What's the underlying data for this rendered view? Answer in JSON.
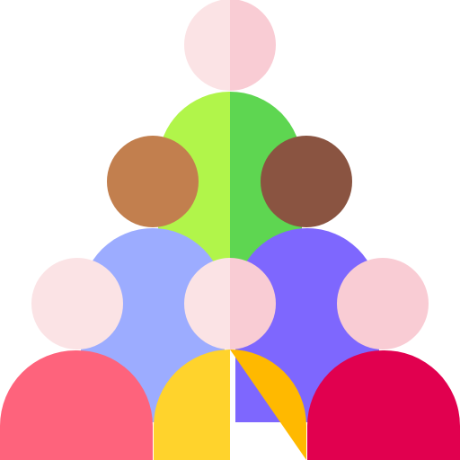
{
  "illustration": {
    "icon": "group-of-people-icon",
    "people": [
      {
        "id": "top",
        "icon": "person-icon",
        "head_left": "#fbe3e5",
        "head_right": "#f9ccd4",
        "body_left": null,
        "body_right": null
      },
      {
        "id": "green",
        "icon": "person-icon",
        "head_left": null,
        "head_right": null,
        "body_left": "#b1f54a",
        "body_right": "#5ed651"
      },
      {
        "id": "tan",
        "icon": "person-icon",
        "head_left": "#c27f4e",
        "head_right": "#c27f4e",
        "body_left": null,
        "body_right": null
      },
      {
        "id": "brown",
        "icon": "person-icon",
        "head_left": "#8a5441",
        "head_right": "#8a5441",
        "body_left": null,
        "body_right": null
      },
      {
        "id": "blue",
        "icon": "person-icon",
        "head_left": null,
        "head_right": null,
        "body_left": "#9cacff",
        "body_right": "#9cacff"
      },
      {
        "id": "purple",
        "icon": "person-icon",
        "head_left": null,
        "head_right": null,
        "body_left": "#7e67fe",
        "body_right": "#7e67fe"
      },
      {
        "id": "left",
        "icon": "person-icon",
        "head_left": "#fbe3e5",
        "head_right": "#fbe3e5",
        "body_left": "#fe637c",
        "body_right": "#fe637c"
      },
      {
        "id": "center",
        "icon": "person-icon",
        "head_left": "#fbe3e5",
        "head_right": "#f9ccd4",
        "body_left": "#ffd32c",
        "body_right": "#ffb900"
      },
      {
        "id": "right",
        "icon": "person-icon",
        "head_left": "#f9ccd4",
        "head_right": "#f9ccd4",
        "body_left": "#e1004f",
        "body_right": "#e1004f"
      }
    ]
  }
}
